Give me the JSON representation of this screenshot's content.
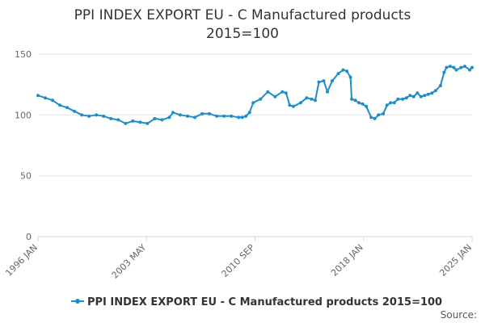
{
  "chart_data": {
    "type": "line",
    "title": "PPI INDEX EXPORT EU - C Manufactured products",
    "subtitle": "2015=100",
    "xlabel": "",
    "ylabel": "",
    "ylim": [
      0,
      150
    ],
    "yticks": [
      0,
      50,
      100,
      150
    ],
    "xticks": [
      "1996 JAN",
      "2003 MAY",
      "2010 SEP",
      "2018 JAN",
      "2025 JAN"
    ],
    "x_range": [
      "1996-01",
      "2025-01"
    ],
    "grid": true,
    "legend_position": "bottom",
    "series": [
      {
        "name": "PPI INDEX EXPORT EU - C Manufactured products 2015=100",
        "color": "#1f8dc8",
        "points": [
          [
            "1996-01",
            116
          ],
          [
            "1996-07",
            114
          ],
          [
            "1997-01",
            112
          ],
          [
            "1997-07",
            108
          ],
          [
            "1998-01",
            106
          ],
          [
            "1998-07",
            103
          ],
          [
            "1999-01",
            100
          ],
          [
            "1999-07",
            99
          ],
          [
            "2000-01",
            100
          ],
          [
            "2000-07",
            99
          ],
          [
            "2001-01",
            97
          ],
          [
            "2001-07",
            96
          ],
          [
            "2002-01",
            93
          ],
          [
            "2002-07",
            95
          ],
          [
            "2003-01",
            94
          ],
          [
            "2003-07",
            93
          ],
          [
            "2004-01",
            97
          ],
          [
            "2004-07",
            96
          ],
          [
            "2005-01",
            98
          ],
          [
            "2005-04",
            102
          ],
          [
            "2005-10",
            100
          ],
          [
            "2006-04",
            99
          ],
          [
            "2006-10",
            98
          ],
          [
            "2007-04",
            101
          ],
          [
            "2007-10",
            101
          ],
          [
            "2008-04",
            99
          ],
          [
            "2008-10",
            99
          ],
          [
            "2009-04",
            99
          ],
          [
            "2009-10",
            98
          ],
          [
            "2010-01",
            98
          ],
          [
            "2010-04",
            99
          ],
          [
            "2010-07",
            102
          ],
          [
            "2010-10",
            110
          ],
          [
            "2011-04",
            113
          ],
          [
            "2011-10",
            119
          ],
          [
            "2012-04",
            115
          ],
          [
            "2012-10",
            119
          ],
          [
            "2013-01",
            118
          ],
          [
            "2013-04",
            108
          ],
          [
            "2013-07",
            107
          ],
          [
            "2014-01",
            110
          ],
          [
            "2014-06",
            114
          ],
          [
            "2014-10",
            113
          ],
          [
            "2015-01",
            112
          ],
          [
            "2015-04",
            127
          ],
          [
            "2015-08",
            128
          ],
          [
            "2015-11",
            119
          ],
          [
            "2016-03",
            128
          ],
          [
            "2016-08",
            134
          ],
          [
            "2016-12",
            137
          ],
          [
            "2017-03",
            136
          ],
          [
            "2017-06",
            131
          ],
          [
            "2017-07",
            113
          ],
          [
            "2017-10",
            112
          ],
          [
            "2018-01",
            110
          ],
          [
            "2018-04",
            109
          ],
          [
            "2018-07",
            107
          ],
          [
            "2018-11",
            98
          ],
          [
            "2019-02",
            97
          ],
          [
            "2019-05",
            100
          ],
          [
            "2019-09",
            101
          ],
          [
            "2019-12",
            108
          ],
          [
            "2020-03",
            110
          ],
          [
            "2020-06",
            110
          ],
          [
            "2020-09",
            113
          ],
          [
            "2021-01",
            113
          ],
          [
            "2021-04",
            114
          ],
          [
            "2021-07",
            116
          ],
          [
            "2021-10",
            115
          ],
          [
            "2022-01",
            118
          ],
          [
            "2022-04",
            115
          ],
          [
            "2022-07",
            116
          ],
          [
            "2022-10",
            117
          ],
          [
            "2023-01",
            118
          ],
          [
            "2023-04",
            120
          ],
          [
            "2023-08",
            124
          ],
          [
            "2023-11",
            135
          ],
          [
            "2024-01",
            139
          ],
          [
            "2024-04",
            140
          ],
          [
            "2024-07",
            139
          ],
          [
            "2024-09",
            137
          ],
          [
            "2025-01",
            139
          ],
          [
            "2025-04",
            140
          ],
          [
            "2025-08",
            137
          ],
          [
            "2025-10",
            139
          ]
        ]
      }
    ]
  },
  "credits": "Source:"
}
